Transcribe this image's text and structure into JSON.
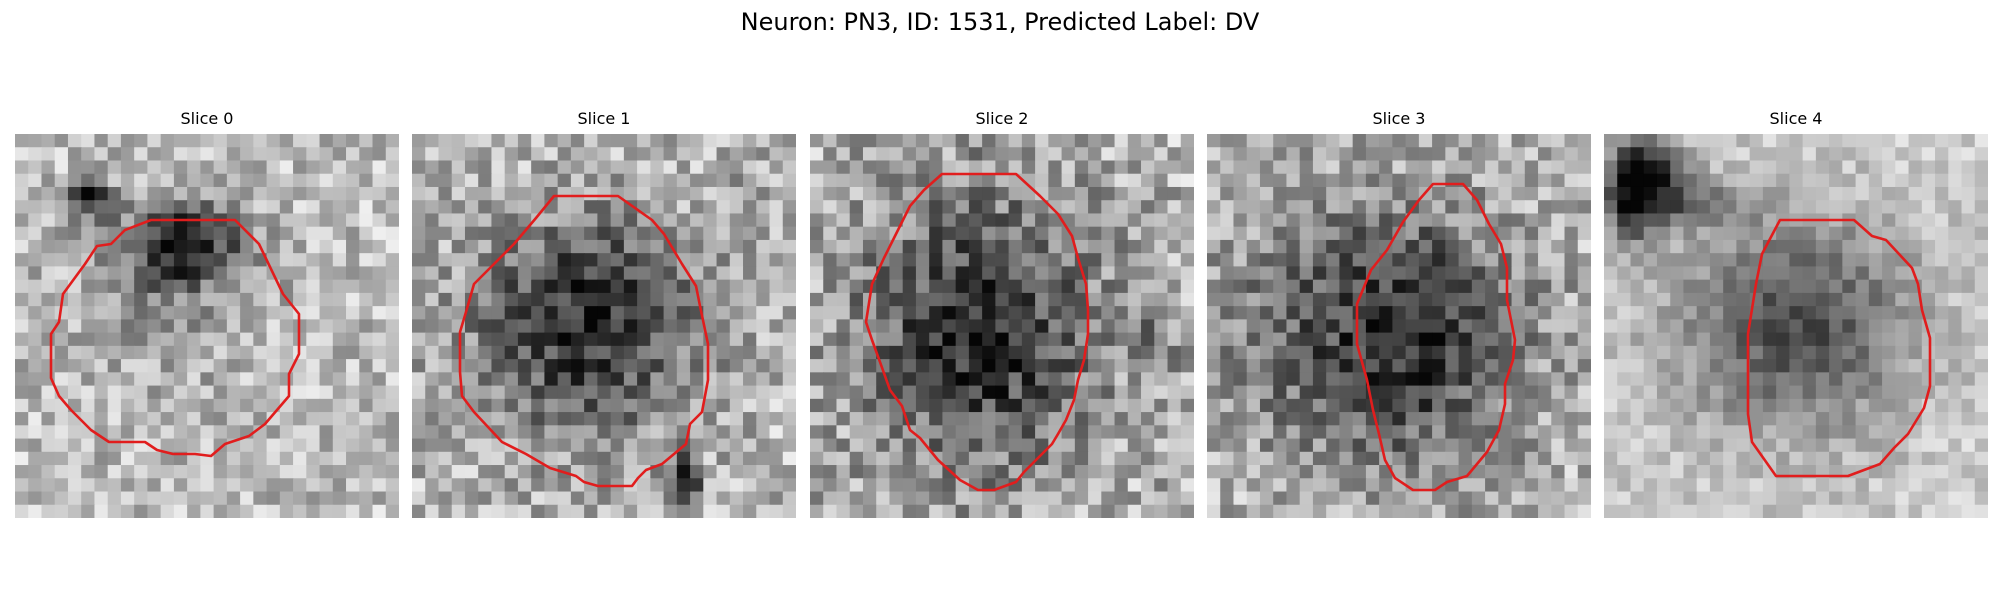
{
  "suptitle": "Neuron: PN3, ID: 1531, Predicted Label: DV",
  "panels": [
    {
      "title": "Slice 0"
    },
    {
      "title": "Slice 1"
    },
    {
      "title": "Slice 2"
    },
    {
      "title": "Slice 3"
    },
    {
      "title": "Slice 4"
    }
  ],
  "colors": {
    "contour": "#e11d1d",
    "background": "#ffffff",
    "colormap": "grayscale"
  }
}
